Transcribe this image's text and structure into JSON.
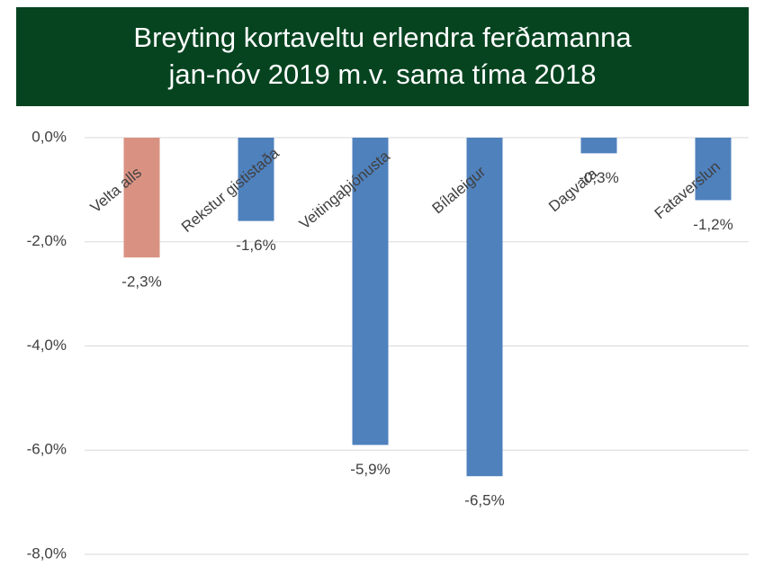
{
  "chart_data": {
    "type": "bar",
    "title": [
      "Breyting kortaveltu erlendra ferðamanna",
      "jan-nóv 2019 m.v. sama tíma 2018"
    ],
    "categories": [
      "Velta alls",
      "Rekstur gististaða",
      "Veitingaþjónusta",
      "Bílaleigur",
      "Dagvara",
      "Fataverslun"
    ],
    "values": [
      -2.3,
      -1.6,
      -5.9,
      -6.5,
      -0.3,
      -1.2
    ],
    "value_labels": [
      "-2,3%",
      "-1,6%",
      "-5,9%",
      "-6,5%",
      "-0,3%",
      "-1,2%"
    ],
    "colors": [
      "#d99282",
      "#4f81bd",
      "#4f81bd",
      "#4f81bd",
      "#4f81bd",
      "#4f81bd"
    ],
    "ylim": [
      -8,
      0
    ],
    "yticks": [
      {
        "value": 0,
        "label": "0,0%"
      },
      {
        "value": -2,
        "label": "-2,0%"
      },
      {
        "value": -4,
        "label": "-4,0%"
      },
      {
        "value": -6,
        "label": "-6,0%"
      },
      {
        "value": -8,
        "label": "-8,0%"
      }
    ],
    "grid": true
  }
}
